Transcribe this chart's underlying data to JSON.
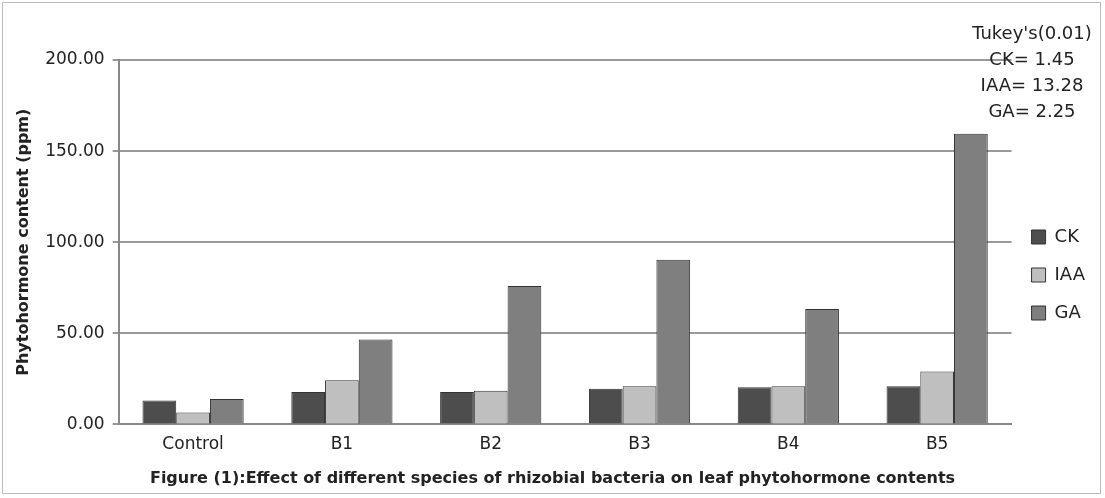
{
  "chart_data": {
    "type": "bar",
    "title": "Figure (1):Effect of different species of rhizobial bacteria on leaf phytohormone contents",
    "ylabel": "Phytohormone content (ppm)",
    "categories": [
      "Control",
      "B1",
      "B2",
      "B3",
      "B4",
      "B5"
    ],
    "series": [
      {
        "name": "CK",
        "color": "#4d4d4d",
        "values": [
          13.1,
          17.8,
          17.8,
          19.6,
          20.4,
          20.9
        ]
      },
      {
        "name": "IAA",
        "color": "#bfbfbf",
        "values": [
          6.5,
          24.2,
          18.5,
          21,
          20.9,
          29
        ]
      },
      {
        "name": "GA",
        "color": "#7f7f7f",
        "values": [
          13.9,
          46.6,
          76,
          90.4,
          63.4,
          159.5
        ]
      }
    ],
    "ylim": [
      0,
      200
    ],
    "yticks": [
      {
        "value": 0,
        "label": "0.00"
      },
      {
        "value": 50,
        "label": "50.00"
      },
      {
        "value": 100,
        "label": "100.00"
      },
      {
        "value": 150,
        "label": "150.00"
      },
      {
        "value": 200,
        "label": "200.00"
      }
    ],
    "grid": "y",
    "legend": "right",
    "annotations": [
      "Tukey's(0.01)",
      "CK= 1.45",
      "IAA= 13.28",
      "GA= 2.25"
    ]
  }
}
